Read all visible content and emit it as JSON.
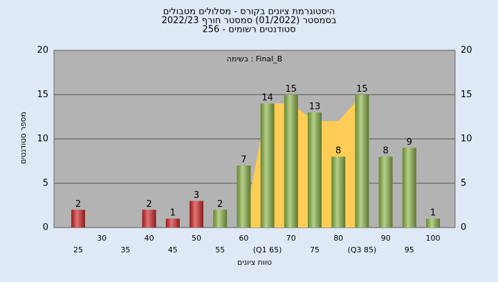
{
  "chart_data": {
    "type": "bar",
    "title": "היסטוגרמת ציונים בקורס - מסלולים מטבולים",
    "subtitle": "בסמסטר  (01/2022)  סמסטר חורף 2022/23",
    "subtitle2": "סטודנטים רשומים - 256",
    "annotation": "בשימה : Final_B",
    "x_label": "טווח ציונים",
    "y_label": "מספר סטודנטים",
    "categories": [
      "25",
      "30",
      "35",
      "40",
      "45",
      "50",
      "55",
      "60",
      "(Q1 65)",
      "70",
      "75",
      "80",
      "(Q3 85)",
      "90",
      "95",
      "100"
    ],
    "values": [
      2,
      null,
      null,
      2,
      1,
      3,
      2,
      7,
      14,
      15,
      13,
      8,
      15,
      8,
      9,
      1
    ],
    "colors": [
      "#d42a2a",
      null,
      null,
      "#d42a2a",
      "#d42a2a",
      "#d42a2a",
      "#8fb84a",
      "#8fb84a",
      "#8fb84a",
      "#8fb84a",
      "#8fb84a",
      "#8fb84a",
      "#8fb84a",
      "#8fb84a",
      "#8fb84a",
      "#8fb84a"
    ],
    "area_values": [
      null,
      null,
      null,
      null,
      null,
      null,
      null,
      0,
      14,
      14,
      12,
      12,
      15,
      null,
      null,
      null
    ],
    "area_color": "#ffcc55",
    "ylim": [
      0,
      20
    ],
    "yticks": [
      0,
      5,
      10,
      15,
      20
    ],
    "grid": true
  }
}
